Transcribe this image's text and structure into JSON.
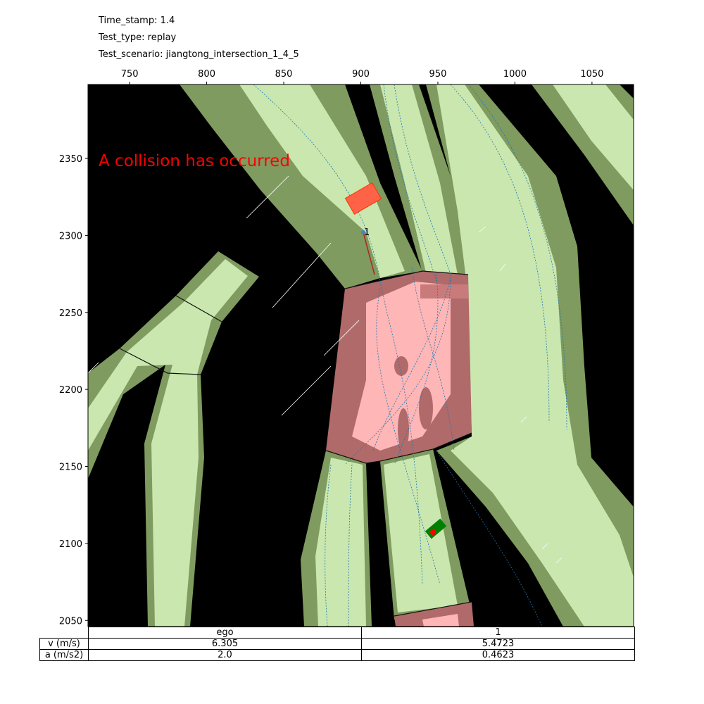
{
  "header": {
    "time_stamp": "Time_stamp: 1.4",
    "test_type": "Test_type: replay",
    "test_scenario": "Test_scenario: jiangtong_intersection_1_4_5"
  },
  "annotation": {
    "collision_text": "A collision has occurred"
  },
  "colors": {
    "background": "#000000",
    "lane_outer": "#7f9b5f",
    "lane_inner": "#c9e7af",
    "intersection_outer": "#b06a6a",
    "intersection_inner": "#ffb6b6",
    "ego_vehicle": "#008000",
    "other_vehicle": "#ff6347",
    "trajectory": "#1f77b4",
    "collision_text": "#ff0000"
  },
  "chart_data": {
    "type": "scatter",
    "title": "",
    "xlabel": "",
    "ylabel": "",
    "xlim": [
      723,
      1077
    ],
    "ylim": [
      2046,
      2398
    ],
    "x_axis_position": "top",
    "grid": false,
    "x_ticks": [
      "750",
      "800",
      "850",
      "900",
      "950",
      "1000",
      "1050"
    ],
    "y_ticks": [
      "2050",
      "2100",
      "2150",
      "2200",
      "2250",
      "2300",
      "2350"
    ],
    "vehicles": [
      {
        "id": "ego",
        "x": 947,
        "y": 2109,
        "heading_deg": 40,
        "length": 12,
        "width": 5
      },
      {
        "id": "1",
        "x": 901,
        "y": 2326,
        "heading_deg": 30,
        "length": 20,
        "width": 12
      }
    ],
    "vehicle_labels": [
      {
        "text": "1",
        "x": 904,
        "y": 2303
      }
    ]
  },
  "table": {
    "columns": [
      "ego",
      "1"
    ],
    "rows": [
      {
        "label": "v (m/s)",
        "values": [
          "6.305",
          "5.4723"
        ]
      },
      {
        "label": "a (m/s2)",
        "values": [
          "2.0",
          "0.4623"
        ]
      }
    ]
  }
}
